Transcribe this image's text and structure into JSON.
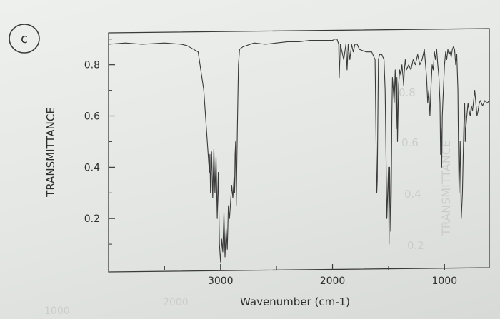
{
  "panel_label": "c",
  "bleed_through": {
    "right_axis_title": "TRANSMITTANCE",
    "right_ticks": [
      "0.8",
      "0.6",
      "0.4",
      "0.2"
    ],
    "bottom_ticks": [
      "2000",
      "1000"
    ]
  },
  "chart_data": {
    "type": "line",
    "title": "",
    "xlabel": "Wavenumber (cm-1)",
    "ylabel": "TRANSMITTANCE",
    "xlim": [
      4000,
      600
    ],
    "ylim": [
      0.0,
      0.93
    ],
    "x_reversed": true,
    "grid": false,
    "x_ticks": [
      3000,
      2000,
      1000
    ],
    "x_tick_labels": [
      "3000",
      "2000",
      "1000"
    ],
    "y_ticks": [
      0.8,
      0.6,
      0.4,
      0.2
    ],
    "y_tick_labels": [
      "0.8",
      "0.6",
      "0.4",
      "0.2"
    ],
    "line_color": "#3a3a3a",
    "series": [
      {
        "x": [
          4000,
          3850,
          3700,
          3500,
          3350,
          3300,
          3200,
          3150,
          3100,
          3095,
          3090,
          3080,
          3070,
          3060,
          3050,
          3040,
          3030,
          3020,
          3010,
          3000,
          2990,
          2980,
          2970,
          2960,
          2950,
          2940,
          2930,
          2920,
          2900,
          2890,
          2880,
          2875,
          2870,
          2865,
          2860,
          2855,
          2850,
          2840,
          2830,
          2800,
          2700,
          2600,
          2500,
          2400,
          2300,
          2200,
          2100,
          2000,
          1980,
          1960,
          1945,
          1940,
          1930,
          1900,
          1880,
          1870,
          1860,
          1845,
          1830,
          1815,
          1800,
          1780,
          1760,
          1700,
          1650,
          1620,
          1610,
          1605,
          1600,
          1595,
          1590,
          1580,
          1560,
          1540,
          1530,
          1515,
          1500,
          1495,
          1490,
          1480,
          1475,
          1470,
          1465,
          1460,
          1450,
          1440,
          1435,
          1430,
          1425,
          1420,
          1410,
          1400,
          1390,
          1380,
          1370,
          1365,
          1360,
          1350,
          1340,
          1320,
          1300,
          1280,
          1260,
          1240,
          1220,
          1200,
          1180,
          1160,
          1150,
          1140,
          1130,
          1120,
          1110,
          1100,
          1090,
          1080,
          1070,
          1060,
          1050,
          1040,
          1035,
          1030,
          1025,
          1020,
          1010,
          1000,
          990,
          980,
          970,
          960,
          950,
          940,
          930,
          920,
          910,
          900,
          890,
          880,
          875,
          870,
          865,
          860,
          850,
          840,
          830,
          825,
          820,
          815,
          810,
          800,
          790,
          780,
          770,
          760,
          750,
          740,
          730,
          720,
          710,
          700,
          690,
          680,
          670,
          660,
          650,
          640,
          620,
          600
        ],
        "y": [
          0.88,
          0.885,
          0.88,
          0.885,
          0.88,
          0.875,
          0.85,
          0.7,
          0.38,
          0.45,
          0.3,
          0.46,
          0.28,
          0.47,
          0.3,
          0.44,
          0.2,
          0.38,
          0.1,
          0.03,
          0.12,
          0.07,
          0.22,
          0.05,
          0.16,
          0.08,
          0.25,
          0.2,
          0.33,
          0.28,
          0.36,
          0.3,
          0.45,
          0.5,
          0.25,
          0.4,
          0.55,
          0.8,
          0.86,
          0.87,
          0.885,
          0.88,
          0.885,
          0.89,
          0.89,
          0.895,
          0.895,
          0.895,
          0.9,
          0.9,
          0.88,
          0.75,
          0.88,
          0.82,
          0.88,
          0.78,
          0.88,
          0.82,
          0.88,
          0.85,
          0.88,
          0.88,
          0.86,
          0.85,
          0.85,
          0.82,
          0.45,
          0.3,
          0.35,
          0.6,
          0.82,
          0.84,
          0.84,
          0.82,
          0.7,
          0.2,
          0.4,
          0.1,
          0.4,
          0.15,
          0.3,
          0.6,
          0.75,
          0.72,
          0.65,
          0.78,
          0.7,
          0.55,
          0.75,
          0.5,
          0.72,
          0.78,
          0.76,
          0.8,
          0.75,
          0.72,
          0.77,
          0.82,
          0.78,
          0.8,
          0.78,
          0.82,
          0.8,
          0.84,
          0.8,
          0.82,
          0.86,
          0.75,
          0.65,
          0.7,
          0.6,
          0.72,
          0.8,
          0.78,
          0.85,
          0.82,
          0.86,
          0.8,
          0.75,
          0.65,
          0.45,
          0.55,
          0.4,
          0.6,
          0.7,
          0.8,
          0.85,
          0.82,
          0.86,
          0.84,
          0.85,
          0.83,
          0.86,
          0.87,
          0.86,
          0.8,
          0.84,
          0.7,
          0.45,
          0.3,
          0.4,
          0.5,
          0.2,
          0.3,
          0.5,
          0.6,
          0.65,
          0.5,
          0.55,
          0.6,
          0.65,
          0.62,
          0.6,
          0.64,
          0.62,
          0.66,
          0.7,
          0.65,
          0.6,
          0.62,
          0.65,
          0.66,
          0.65,
          0.64,
          0.65,
          0.66,
          0.65,
          0.66
        ]
      }
    ]
  }
}
